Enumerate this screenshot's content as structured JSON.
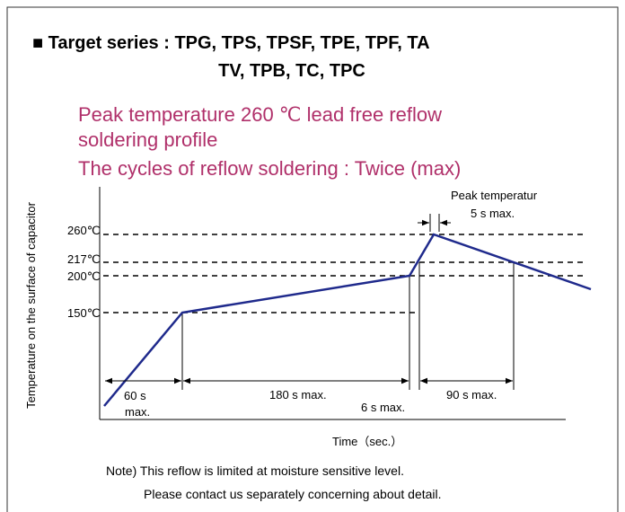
{
  "header": {
    "title_line1": "■ Target series : TPG, TPS, TPSF, TPE, TPF, TA",
    "title_line2": "TV, TPB, TC, TPC"
  },
  "subtitle": [
    "Peak temperature 260 ℃ lead free reflow",
    "soldering profile",
    "The cycles of reflow soldering : Twice (max)"
  ],
  "diagram": {
    "y_axis_label": "Temperature on the surface of capacitor",
    "x_axis_label": "Time（sec.）",
    "temperature_labels": [
      "260℃",
      "217℃",
      "200℃",
      "150℃"
    ],
    "durations": [
      "60 s",
      "max.",
      "180 s max.",
      "6 s max.",
      "90 s max."
    ],
    "peak": [
      "Peak temperatur",
      "5 s max."
    ]
  },
  "notes": [
    "Note) This reflow is limited at moisture sensitive level.",
    "Please contact us separately concerning about detail."
  ]
}
